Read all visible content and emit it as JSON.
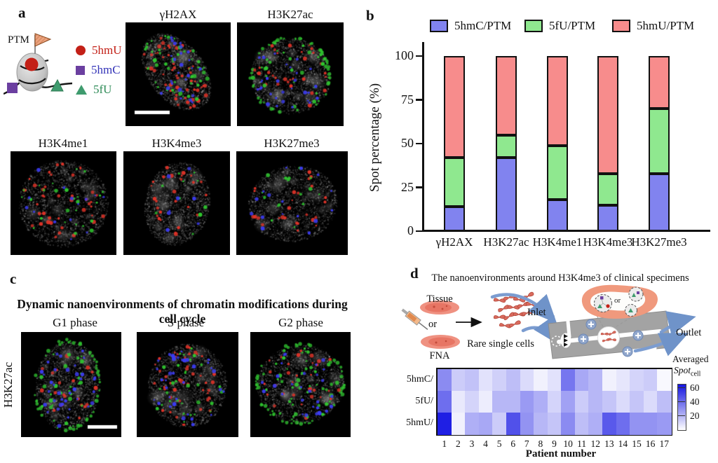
{
  "panel_a": {
    "label": "a",
    "ptm_label": "PTM",
    "legend": [
      {
        "label": "5hmU",
        "marker": "circle",
        "marker_color": "#c32017",
        "text_color": "#c32017"
      },
      {
        "label": "5hmC",
        "marker": "square",
        "marker_color": "#6b3fa0",
        "text_color": "#3434b8"
      },
      {
        "label": "5fU",
        "marker": "triangle",
        "marker_color": "#3f9b6e",
        "text_color": "#2e8b57"
      }
    ],
    "images": [
      "γH2AX",
      "H3K27ac",
      "H3K4me1",
      "H3K4me3",
      "H3K27me3"
    ]
  },
  "panel_b": {
    "label": "b"
  },
  "panel_c": {
    "label": "c",
    "title": "Dynamic nanoenvironments of chromatin modifications during cell cycle",
    "row_label": "H3K27ac",
    "phases": [
      "G1 phase",
      "S phase",
      "G2 phase"
    ]
  },
  "panel_d": {
    "label": "d",
    "title": "The nanoenvironments around H3K4me3 of clinical specimens",
    "workflow": {
      "tissue": "Tissue",
      "or": "or",
      "fna": "FNA",
      "rare_cells": "Rare single cells",
      "inlet": "Inlet",
      "outlet": "Outlet",
      "inset_or": "or"
    },
    "colorbar_title_1": "Averaged",
    "colorbar_title_2": "Spot",
    "colorbar_title_sub": "cell"
  },
  "chart_data": [
    {
      "type": "bar",
      "stacked": true,
      "categories": [
        "γH2AX",
        "H3K27ac",
        "H3K4me1",
        "H3K4me3",
        "H3K27me3"
      ],
      "series": [
        {
          "name": "5hmC/PTM",
          "color": "#8183ef",
          "values": [
            14,
            42,
            18,
            15,
            33
          ]
        },
        {
          "name": "5fU/PTM",
          "color": "#8fe88f",
          "values": [
            28,
            13,
            31,
            18,
            37
          ]
        },
        {
          "name": "5hmU/PTM",
          "color": "#f78c8c",
          "values": [
            58,
            45,
            51,
            67,
            30
          ]
        }
      ],
      "ylabel": "Spot percentage (%)",
      "ylim": [
        0,
        100
      ],
      "yticks": [
        0,
        25,
        50,
        75,
        100
      ],
      "legend_position": "top",
      "grid": false
    },
    {
      "type": "heatmap",
      "rows": [
        "5hmC/",
        "5fU/",
        "5hmU/"
      ],
      "columns": [
        1,
        2,
        3,
        4,
        5,
        6,
        7,
        8,
        9,
        10,
        11,
        12,
        13,
        14,
        15,
        16,
        17
      ],
      "values": [
        [
          32,
          14,
          17,
          8,
          13,
          18,
          10,
          4,
          8,
          38,
          24,
          20,
          4,
          7,
          12,
          14,
          2
        ],
        [
          40,
          6,
          12,
          5,
          20,
          20,
          28,
          22,
          12,
          26,
          14,
          20,
          16,
          10,
          16,
          10,
          18
        ],
        [
          62,
          4,
          22,
          24,
          14,
          48,
          30,
          20,
          16,
          32,
          18,
          22,
          46,
          40,
          30,
          30,
          28
        ]
      ],
      "xlabel": "Patient number",
      "colorbar": {
        "ticks": [
          60,
          40,
          20
        ],
        "max": 65,
        "color": "#1414e0"
      }
    }
  ]
}
